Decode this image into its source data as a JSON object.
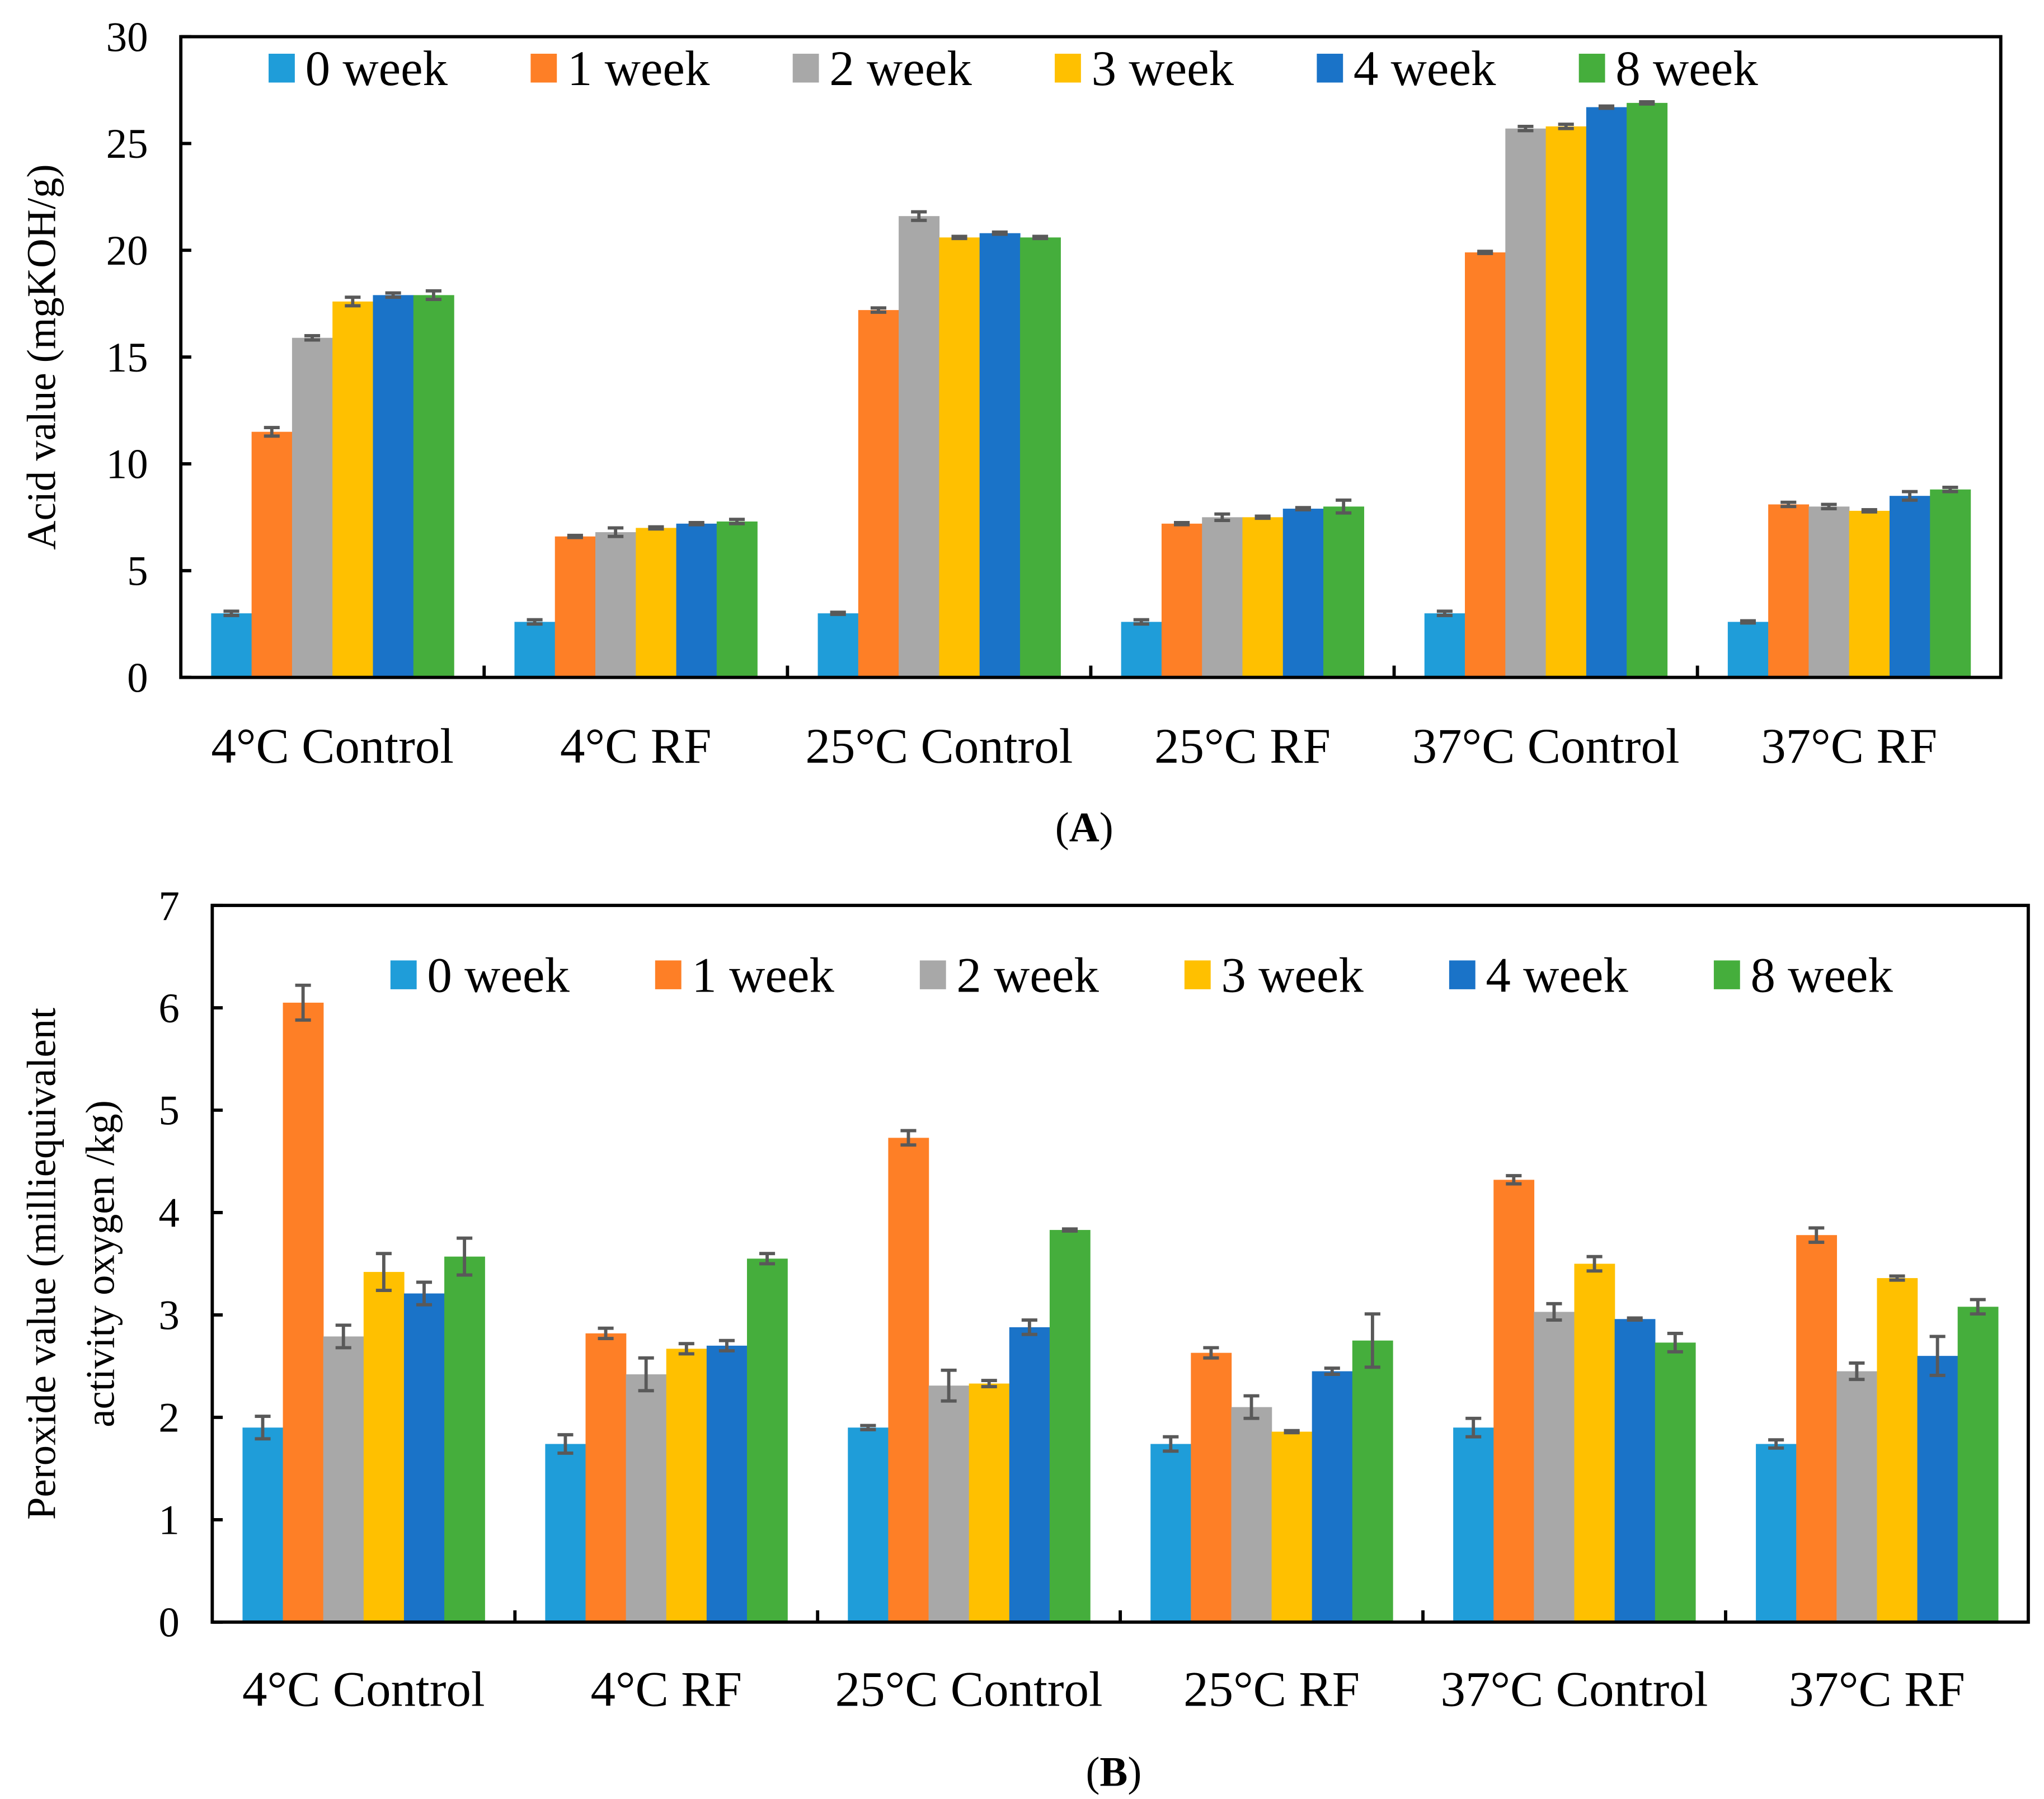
{
  "chart_data": [
    {
      "type": "bar",
      "panel_label": "A",
      "ylabel": [
        "Acid value (mgKOH/g)"
      ],
      "ylim": [
        0,
        30
      ],
      "yticks": [
        0,
        5,
        10,
        15,
        20,
        25,
        30
      ],
      "categories": [
        "4°C Control",
        "4°C RF",
        "25°C Control",
        "25°C RF",
        "37°C Control",
        "37°C RF"
      ],
      "legend_position": "top",
      "series": [
        {
          "name": "0 week",
          "color": "#1f9dd9",
          "values": [
            3.0,
            2.6,
            3.0,
            2.6,
            3.0,
            2.6
          ],
          "errors": [
            0.1,
            0.1,
            0.05,
            0.1,
            0.1,
            0.05
          ]
        },
        {
          "name": "1 week",
          "color": "#fe7f26",
          "values": [
            11.5,
            6.6,
            17.2,
            7.2,
            19.9,
            8.1
          ],
          "errors": [
            0.2,
            0.05,
            0.1,
            0.05,
            0.05,
            0.1
          ]
        },
        {
          "name": "2 week",
          "color": "#a8a8a8",
          "values": [
            15.9,
            6.8,
            21.6,
            7.5,
            25.7,
            8.0
          ],
          "errors": [
            0.1,
            0.2,
            0.2,
            0.15,
            0.1,
            0.1
          ]
        },
        {
          "name": "3 week",
          "color": "#ffc000",
          "values": [
            17.6,
            7.0,
            20.6,
            7.5,
            25.8,
            7.8
          ],
          "errors": [
            0.2,
            0.05,
            0.05,
            0.05,
            0.1,
            0.05
          ]
        },
        {
          "name": "4 week",
          "color": "#1a73c8",
          "values": [
            17.9,
            7.2,
            20.8,
            7.9,
            26.7,
            8.5
          ],
          "errors": [
            0.1,
            0.05,
            0.05,
            0.05,
            0.05,
            0.2
          ]
        },
        {
          "name": "8 week",
          "color": "#45ae3c",
          "values": [
            17.9,
            7.3,
            20.6,
            8.0,
            26.9,
            8.8
          ],
          "errors": [
            0.2,
            0.1,
            0.05,
            0.3,
            0.05,
            0.1
          ]
        }
      ]
    },
    {
      "type": "bar",
      "panel_label": "B",
      "ylabel": [
        "Peroxide value (milliequivalent",
        "activity oxygen /kg)"
      ],
      "ylim": [
        0,
        7
      ],
      "yticks": [
        0,
        1,
        2,
        3,
        4,
        5,
        6,
        7
      ],
      "categories": [
        "4°C Control",
        "4°C RF",
        "25°C Control",
        "25°C RF",
        "37°C Control",
        "37°C RF"
      ],
      "legend_position": "top",
      "series": [
        {
          "name": "0 week",
          "color": "#1f9dd9",
          "values": [
            1.9,
            1.74,
            1.9,
            1.74,
            1.9,
            1.74
          ],
          "errors": [
            0.11,
            0.09,
            0.02,
            0.07,
            0.09,
            0.04
          ]
        },
        {
          "name": "1 week",
          "color": "#fe7f26",
          "values": [
            6.05,
            2.82,
            4.73,
            2.63,
            4.32,
            3.78
          ],
          "errors": [
            0.17,
            0.05,
            0.07,
            0.05,
            0.04,
            0.07
          ]
        },
        {
          "name": "2 week",
          "color": "#a8a8a8",
          "values": [
            2.79,
            2.42,
            2.31,
            2.1,
            3.03,
            2.45
          ],
          "errors": [
            0.11,
            0.16,
            0.15,
            0.11,
            0.08,
            0.08
          ]
        },
        {
          "name": "3 week",
          "color": "#ffc000",
          "values": [
            3.42,
            2.67,
            2.33,
            1.86,
            3.5,
            3.36
          ],
          "errors": [
            0.18,
            0.05,
            0.03,
            0.01,
            0.07,
            0.02
          ]
        },
        {
          "name": "4 week",
          "color": "#1a73c8",
          "values": [
            3.21,
            2.7,
            2.88,
            2.45,
            2.96,
            2.6
          ],
          "errors": [
            0.11,
            0.05,
            0.07,
            0.03,
            0.01,
            0.19
          ]
        },
        {
          "name": "8 week",
          "color": "#45ae3c",
          "values": [
            3.57,
            3.55,
            3.83,
            2.75,
            2.73,
            3.08
          ],
          "errors": [
            0.18,
            0.05,
            0.01,
            0.26,
            0.09,
            0.07
          ]
        }
      ]
    }
  ]
}
